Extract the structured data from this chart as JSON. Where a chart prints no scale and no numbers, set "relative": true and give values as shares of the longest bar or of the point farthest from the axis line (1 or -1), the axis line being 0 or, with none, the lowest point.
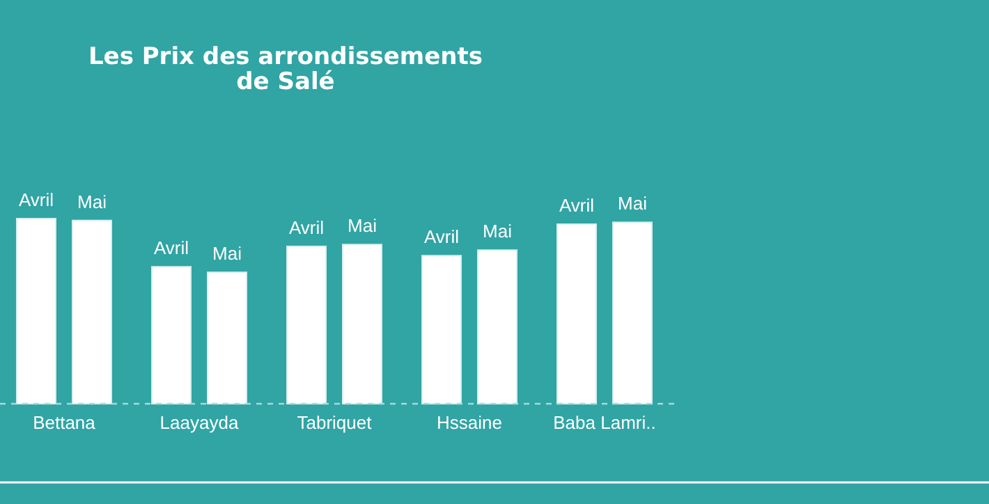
{
  "chart_data": {
    "type": "bar",
    "title": "Les Prix des arrondissements\nde Salé",
    "relative": true,
    "categories": [
      "Bettana",
      "Laayayda",
      "Tabriquet",
      "Hssaine",
      "Baba Lamri.."
    ],
    "series": [
      {
        "name": "Avril",
        "color": "#ffffff",
        "values": [
          1,
          0.74,
          0.85,
          0.8,
          0.97
        ]
      },
      {
        "name": "Mai",
        "color": "#ffffff",
        "values": [
          0.99,
          0.71,
          0.86,
          0.83,
          0.98
        ]
      }
    ]
  }
}
